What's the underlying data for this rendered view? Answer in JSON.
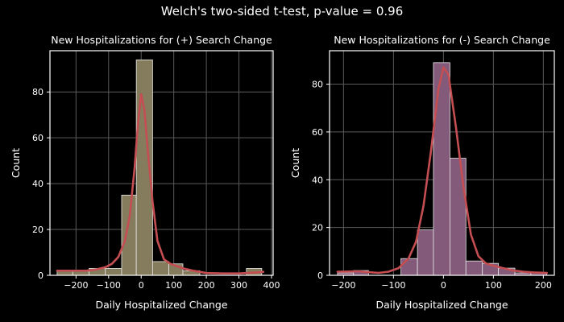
{
  "figure": {
    "suptitle": "Welch's two-sided t-test, p-value = 0.96"
  },
  "colors": {
    "background": "#000000",
    "axes_edge": "#ffffff",
    "grid": "#5a5a5a",
    "kde_line": "#c44e52",
    "left_bar": "#857c5d",
    "right_bar": "#835a79",
    "bar_edge": "#e8e8e8"
  },
  "chart_data": [
    {
      "type": "bar",
      "title": "New Hospitalizations for (+) Search Change",
      "xlabel": "Daily Hospitalized Change",
      "ylabel": "Count",
      "xlim": [
        -280,
        405
      ],
      "ylim": [
        0,
        98
      ],
      "grid": true,
      "xticks": [
        -200,
        -100,
        0,
        100,
        200,
        300,
        400
      ],
      "xtick_labels": [
        "−200",
        "−100",
        "0",
        "100",
        "200",
        "300",
        "400"
      ],
      "yticks": [
        0,
        20,
        40,
        60,
        80
      ],
      "ytick_labels": [
        "0",
        "20",
        "40",
        "60",
        "80"
      ],
      "bin_edges": [
        -258,
        -210,
        -160,
        -110,
        -60,
        -15,
        35,
        85,
        128,
        180,
        228,
        275,
        323,
        370
      ],
      "counts": [
        2,
        2,
        3,
        3,
        35,
        94,
        6,
        5,
        2,
        0,
        0,
        0,
        3
      ],
      "kde": {
        "x": [
          -258,
          -230,
          -200,
          -170,
          -140,
          -110,
          -90,
          -70,
          -50,
          -35,
          -20,
          -10,
          0,
          10,
          20,
          35,
          50,
          70,
          90,
          110,
          130,
          160,
          200,
          250,
          300,
          350,
          375
        ],
        "y": [
          2,
          2,
          2,
          2,
          2.5,
          3.5,
          5,
          8,
          15,
          26,
          47,
          66,
          79,
          72,
          55,
          32,
          15,
          7,
          5,
          4,
          3,
          2,
          1,
          0.8,
          0.8,
          1.2,
          1.5
        ]
      }
    },
    {
      "type": "bar",
      "title": "New Hospitalizations for (-) Search Change",
      "xlabel": "Daily Hospitalized Change",
      "ylabel": "Count",
      "xlim": [
        -228,
        222
      ],
      "ylim": [
        0,
        94
      ],
      "grid": true,
      "xticks": [
        -200,
        -100,
        0,
        100,
        200
      ],
      "xtick_labels": [
        "−200",
        "−100",
        "0",
        "100",
        "200"
      ],
      "yticks": [
        0,
        20,
        40,
        60,
        80
      ],
      "ytick_labels": [
        "0",
        "20",
        "40",
        "60",
        "80"
      ],
      "bin_edges": [
        -212,
        -180,
        -150,
        -117,
        -85,
        -52,
        -20,
        13,
        45,
        78,
        110,
        143,
        175,
        207
      ],
      "counts": [
        1,
        2,
        0,
        0,
        7,
        19,
        89,
        49,
        6,
        5,
        3,
        1,
        1
      ],
      "kde": {
        "x": [
          -212,
          -190,
          -170,
          -150,
          -130,
          -110,
          -90,
          -70,
          -55,
          -40,
          -25,
          -10,
          0,
          10,
          25,
          40,
          55,
          70,
          85,
          100,
          120,
          140,
          160,
          180,
          207
        ],
        "y": [
          1.5,
          1.6,
          1.7,
          1.3,
          1,
          1.5,
          3,
          7,
          14,
          29,
          52,
          78,
          87,
          84,
          62,
          37,
          17,
          8,
          5,
          4,
          3,
          2,
          1.5,
          1.2,
          1
        ]
      }
    }
  ]
}
